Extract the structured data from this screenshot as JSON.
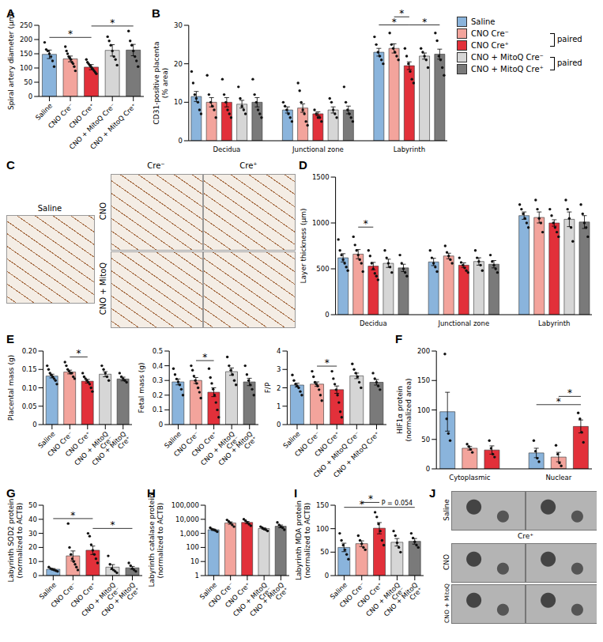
{
  "chart_data": [
    {
      "panel": "A",
      "type": "bar",
      "y_label": [
        "Spiral artery diameter (µm)"
      ],
      "categories": [
        "Saline",
        "CNO Cre⁻",
        "CNO Cre⁺",
        "CNO + MitoQ Cre⁻",
        "CNO + MitoQ Cre⁺"
      ],
      "values": [
        148,
        132,
        103,
        162,
        163
      ],
      "errors": [
        15,
        10,
        9,
        20,
        20
      ],
      "points": [
        [
          190,
          165,
          160,
          150,
          140,
          125,
          105
        ],
        [
          175,
          160,
          150,
          140,
          135,
          130,
          120,
          115,
          105,
          90
        ],
        [
          130,
          120,
          115,
          110,
          105,
          100,
          95,
          90,
          85,
          80
        ],
        [
          210,
          195,
          180,
          160,
          140,
          130,
          110
        ],
        [
          230,
          195,
          180,
          160,
          140,
          125,
          105
        ]
      ],
      "colors": [
        "#8ab4dc",
        "#f3a49c",
        "#e2303a",
        "#d6d6d6",
        "#7a7a7a"
      ],
      "ylim": [
        0,
        250
      ],
      "yticks": [
        0,
        50,
        100,
        150,
        200,
        250
      ],
      "annotations": [
        {
          "from": 0,
          "to": 2,
          "text": "*"
        },
        {
          "from": 2,
          "to": 4,
          "text": "*"
        }
      ]
    },
    {
      "panel": "B",
      "type": "bar",
      "y_label": [
        "CD31-positive placenta",
        "(% area)"
      ],
      "categories": [
        null,
        null,
        "Decidua",
        null,
        null,
        null,
        null,
        null,
        "Junctional zone",
        null,
        null,
        null,
        null,
        null,
        "Labyrinth",
        null,
        null
      ],
      "values": [
        11.5,
        10,
        10,
        9.5,
        10,
        null,
        8,
        8.5,
        7,
        8,
        8,
        null,
        23,
        24,
        19.5,
        22,
        22.5
      ],
      "errors": [
        1.3,
        1.2,
        1.2,
        1,
        1.2,
        null,
        0.8,
        1.1,
        0.5,
        0.8,
        1,
        null,
        1,
        1.2,
        1,
        0.8,
        1.3
      ],
      "points": [
        [
          18,
          15,
          12,
          11,
          10,
          8,
          7
        ],
        [
          17,
          12,
          10,
          9,
          8,
          6
        ],
        [
          16,
          12,
          10,
          8,
          7,
          6
        ],
        [
          14,
          11,
          9,
          8,
          7
        ],
        [
          16,
          12,
          10,
          8,
          7,
          6
        ],
        null,
        [
          10,
          9,
          8,
          7,
          6,
          5
        ],
        [
          15,
          13,
          10,
          8,
          7,
          5,
          4
        ],
        [
          8,
          7,
          6,
          6,
          5
        ],
        [
          11,
          10,
          8,
          7,
          6
        ],
        [
          14,
          10,
          8,
          7,
          6,
          5
        ],
        null,
        [
          27,
          25,
          23,
          22,
          21,
          20
        ],
        [
          28,
          25,
          24,
          23,
          22,
          21
        ],
        [
          24,
          22,
          20,
          18,
          16,
          15
        ],
        [
          24,
          23,
          22,
          21,
          19
        ],
        [
          28,
          26,
          22,
          21,
          19,
          17
        ]
      ],
      "colors": [
        "#8ab4dc",
        "#f3a49c",
        "#e2303a",
        "#d6d6d6",
        "#7a7a7a",
        null,
        "#8ab4dc",
        "#f3a49c",
        "#e2303a",
        "#d6d6d6",
        "#7a7a7a",
        null,
        "#8ab4dc",
        "#f3a49c",
        "#e2303a",
        "#d6d6d6",
        "#7a7a7a"
      ],
      "ylim": [
        0,
        30
      ],
      "yticks": [
        0,
        10,
        20,
        30
      ],
      "annotations": [
        {
          "from": 12,
          "to": 14,
          "text": "*"
        },
        {
          "from": 13,
          "to": 14,
          "text": "*"
        },
        {
          "from": 14,
          "to": 16,
          "text": "*"
        }
      ]
    },
    {
      "panel": "D",
      "type": "bar",
      "y_label": [
        "Layer thickness (µm)"
      ],
      "categories": [
        null,
        null,
        "Decidua",
        null,
        null,
        null,
        null,
        null,
        "Junctional zone",
        null,
        null,
        null,
        null,
        null,
        "Labyrinth",
        null,
        null
      ],
      "values": [
        620,
        660,
        530,
        560,
        510,
        null,
        575,
        640,
        540,
        580,
        550,
        null,
        1080,
        1060,
        1000,
        1040,
        1010
      ],
      "errors": [
        45,
        50,
        40,
        45,
        40,
        null,
        40,
        30,
        25,
        40,
        40,
        null,
        40,
        60,
        35,
        80,
        70
      ],
      "points": [
        [
          820,
          700,
          650,
          600,
          560,
          520,
          480
        ],
        [
          850,
          760,
          700,
          650,
          600,
          560,
          470
        ],
        [
          700,
          640,
          560,
          500,
          450,
          420,
          380
        ],
        [
          700,
          620,
          560,
          520,
          460
        ],
        [
          650,
          560,
          500,
          460,
          420
        ],
        null,
        [
          700,
          620,
          560,
          520,
          470
        ],
        [
          750,
          680,
          640,
          600,
          560
        ],
        [
          620,
          570,
          540,
          510,
          480,
          460
        ],
        [
          700,
          620,
          580,
          540,
          480
        ],
        [
          650,
          580,
          540,
          500,
          460
        ],
        null,
        [
          1200,
          1150,
          1100,
          1050,
          1000,
          950
        ],
        [
          1250,
          1150,
          1050,
          1000,
          900
        ],
        [
          1150,
          1080,
          1000,
          950,
          900,
          850
        ],
        [
          1250,
          1150,
          1050,
          950,
          800
        ],
        [
          1200,
          1100,
          1000,
          950,
          850
        ]
      ],
      "colors": [
        "#8ab4dc",
        "#f3a49c",
        "#e2303a",
        "#d6d6d6",
        "#7a7a7a",
        null,
        "#8ab4dc",
        "#f3a49c",
        "#e2303a",
        "#d6d6d6",
        "#7a7a7a",
        null,
        "#8ab4dc",
        "#f3a49c",
        "#e2303a",
        "#d6d6d6",
        "#7a7a7a"
      ],
      "ylim": [
        0,
        1500
      ],
      "yticks": [
        0,
        500,
        1000,
        1500
      ],
      "annotations": [
        {
          "from": 1,
          "to": 2,
          "text": "*"
        }
      ]
    },
    {
      "panel": "E",
      "type": "bar",
      "y_label": [
        "Placental mass (g)"
      ],
      "categories": [
        "Saline",
        "CNO Cre⁻",
        "CNO Cre⁺",
        "CNO + MitoQ Cre⁻",
        "CNO + MitoQ Cre⁺"
      ],
      "values": [
        0.132,
        0.143,
        0.118,
        0.137,
        0.124
      ],
      "errors": [
        0.005,
        0.005,
        0.005,
        0.007,
        0.005
      ],
      "points": [
        [
          0.16,
          0.15,
          0.14,
          0.135,
          0.13,
          0.125,
          0.12,
          0.11
        ],
        [
          0.17,
          0.16,
          0.15,
          0.145,
          0.14,
          0.14,
          0.13,
          0.125
        ],
        [
          0.14,
          0.13,
          0.125,
          0.12,
          0.115,
          0.11,
          0.1,
          0.09
        ],
        [
          0.16,
          0.15,
          0.14,
          0.13,
          0.12
        ],
        [
          0.14,
          0.13,
          0.125,
          0.12,
          0.115
        ]
      ],
      "colors": [
        "#8ab4dc",
        "#f3a49c",
        "#e2303a",
        "#d6d6d6",
        "#7a7a7a"
      ],
      "ylim": [
        0,
        0.2
      ],
      "yticks": [
        0,
        0.05,
        {
          "value": 0.1,
          "label": "0.10"
        },
        0.15,
        {
          "value": 0.2,
          "label": "0.20"
        }
      ],
      "annotations": [
        {
          "from": 1,
          "to": 2,
          "text": "*"
        }
      ]
    },
    {
      "type": "bar",
      "y_label": [
        "Fetal mass (g)"
      ],
      "categories": [
        "Saline",
        "CNO Cre⁻",
        "CNO Cre⁺",
        "CNO + MitoQ Cre⁻",
        "CNO + MitoQ Cre⁺"
      ],
      "values": [
        0.29,
        0.3,
        0.22,
        0.36,
        0.29
      ],
      "errors": [
        0.02,
        0.02,
        0.03,
        0.025,
        0.025
      ],
      "points": [
        [
          0.38,
          0.34,
          0.31,
          0.29,
          0.27,
          0.24,
          0.2
        ],
        [
          0.4,
          0.37,
          0.33,
          0.3,
          0.28,
          0.25,
          0.22,
          0.18
        ],
        [
          0.38,
          0.32,
          0.28,
          0.24,
          0.2,
          0.15,
          0.1,
          0.05
        ],
        [
          0.46,
          0.4,
          0.37,
          0.34,
          0.3,
          0.27
        ],
        [
          0.4,
          0.34,
          0.3,
          0.27,
          0.24,
          0.2
        ]
      ],
      "colors": [
        "#8ab4dc",
        "#f3a49c",
        "#e2303a",
        "#d6d6d6",
        "#7a7a7a"
      ],
      "ylim": [
        0,
        0.5
      ],
      "yticks": [
        0,
        0.1,
        0.2,
        0.3,
        0.4,
        0.5
      ],
      "annotations": [
        {
          "from": 1,
          "to": 2,
          "text": "*"
        }
      ]
    },
    {
      "type": "bar",
      "y_label": [
        "F/P"
      ],
      "categories": [
        "Saline",
        "CNO Cre⁻",
        "CNO Cre⁺",
        "CNO + MitoQ Cre⁻",
        "CNO + MitoQ Cre⁺"
      ],
      "values": [
        2.15,
        2.2,
        1.9,
        2.65,
        2.3
      ],
      "errors": [
        0.1,
        0.12,
        0.2,
        0.15,
        0.15
      ],
      "points": [
        [
          2.7,
          2.4,
          2.2,
          2.1,
          2,
          1.8,
          1.6
        ],
        [
          2.9,
          2.6,
          2.3,
          2.2,
          2.1,
          1.9,
          1.6,
          1.3
        ],
        [
          2.9,
          2.5,
          2.2,
          1.9,
          1.6,
          1.2,
          0.7,
          0.4
        ],
        [
          3.3,
          3,
          2.8,
          2.6,
          2.3,
          2
        ],
        [
          2.8,
          2.5,
          2.3,
          2.1,
          1.9
        ]
      ],
      "colors": [
        "#8ab4dc",
        "#f3a49c",
        "#e2303a",
        "#d6d6d6",
        "#7a7a7a"
      ],
      "ylim": [
        0,
        4
      ],
      "yticks": [
        0,
        1,
        2,
        3,
        4
      ],
      "annotations": [
        {
          "from": 1,
          "to": 2,
          "text": "*"
        }
      ]
    },
    {
      "panel": "F",
      "type": "bar",
      "y_label": [
        "HIF1α protein",
        "(normalized area)"
      ],
      "categories": [
        null,
        "Cytoplasmic",
        null,
        null,
        null,
        "Nuclear",
        null
      ],
      "values": [
        97,
        35,
        32,
        null,
        27,
        20,
        72
      ],
      "errors": [
        33,
        3,
        7,
        null,
        8,
        8,
        11
      ],
      "points": [
        [
          195,
          85,
          60,
          48
        ],
        [
          42,
          38,
          33,
          28
        ],
        [
          48,
          35,
          25,
          20
        ],
        null,
        [
          48,
          30,
          18,
          12
        ],
        [
          40,
          25,
          10,
          5
        ],
        [
          95,
          85,
          62,
          45
        ]
      ],
      "colors": [
        "#8ab4dc",
        "#f3a49c",
        "#e2303a",
        null,
        "#8ab4dc",
        "#f3a49c",
        "#e2303a"
      ],
      "ylim": [
        0,
        200
      ],
      "yticks": [
        0,
        50,
        100,
        150,
        200
      ],
      "annotations": [
        {
          "from": 4,
          "to": 6,
          "text": "*"
        },
        {
          "from": 5,
          "to": 6,
          "text": "*"
        }
      ]
    },
    {
      "panel": "G",
      "type": "bar",
      "y_label": [
        "Labyrinth SOD2 protein",
        "(normalized to ACTB)"
      ],
      "categories": [
        "Saline",
        "CNO Cre⁻",
        "CNO Cre⁺",
        "CNO + MitoQ Cre⁻",
        "CNO + MitoQ Cre⁺"
      ],
      "values": [
        4.5,
        14,
        18,
        6,
        5.5
      ],
      "errors": [
        0.5,
        3.5,
        3,
        1.8,
        1
      ],
      "points": [
        [
          6,
          5,
          4.5,
          4,
          3.5,
          3
        ],
        [
          37,
          20,
          15,
          12,
          10,
          8,
          6,
          4
        ],
        [
          30,
          28,
          22,
          18,
          15,
          12,
          9
        ],
        [
          14,
          8,
          5,
          4,
          3,
          2
        ],
        [
          9,
          7,
          5,
          4,
          3
        ]
      ],
      "colors": [
        "#8ab4dc",
        "#f3a49c",
        "#e2303a",
        "#d6d6d6",
        "#7a7a7a"
      ],
      "ylim": [
        0,
        50
      ],
      "yticks": [
        0,
        10,
        20,
        30,
        40,
        50
      ],
      "annotations": [
        {
          "from": 0,
          "to": 2,
          "text": "*"
        },
        {
          "from": 2,
          "to": 4,
          "text": "*"
        }
      ]
    },
    {
      "panel": "H",
      "type": "bar",
      "y_label": [
        "Labyrinth catalase protein",
        "(normalized to ACTB)"
      ],
      "categories": [
        "Saline",
        "CNO Cre⁻",
        "CNO Cre⁺",
        "CNO + MitoQ Cre⁻",
        "CNO + MitoQ Cre⁺"
      ],
      "values": [
        1800,
        5500,
        6000,
        2200,
        3200
      ],
      "errors": [
        200,
        1000,
        1000,
        250,
        700
      ],
      "points": [
        [
          2500,
          2000,
          1800,
          1600,
          1300
        ],
        [
          9000,
          7000,
          5500,
          4000,
          3000
        ],
        [
          10000,
          8000,
          6000,
          4500,
          3500
        ],
        [
          3000,
          2500,
          2000,
          1800,
          1500
        ],
        [
          6000,
          4000,
          3000,
          2500,
          1800
        ]
      ],
      "colors": [
        "#8ab4dc",
        "#f3a49c",
        "#e2303a",
        "#d6d6d6",
        "#7a7a7a"
      ],
      "log": "y",
      "ylim": [
        1,
        100000
      ],
      "yticks": [
        1,
        10,
        100,
        {
          "value": 1000,
          "label": "1,000"
        },
        {
          "value": 10000,
          "label": "10,000"
        },
        {
          "value": 100000,
          "label": "100,000"
        }
      ]
    },
    {
      "panel": "I",
      "type": "bar",
      "y_label": [
        "Labyrinth MDA protein",
        "(normalized to ACTB)"
      ],
      "categories": [
        "Saline",
        "CNO Cre⁻",
        "CNO Cre⁺",
        "CNO + MitoQ Cre⁻",
        "CNO + MitoQ Cre⁺"
      ],
      "values": [
        60,
        68,
        101,
        71,
        73
      ],
      "errors": [
        9,
        6,
        12,
        8,
        6
      ],
      "points": [
        [
          90,
          75,
          65,
          55,
          45,
          35
        ],
        [
          85,
          75,
          68,
          60,
          55
        ],
        [
          135,
          125,
          110,
          95,
          75,
          65
        ],
        [
          95,
          85,
          70,
          60,
          50
        ],
        [
          90,
          80,
          72,
          65,
          60
        ]
      ],
      "colors": [
        "#8ab4dc",
        "#f3a49c",
        "#e2303a",
        "#d6d6d6",
        "#7a7a7a"
      ],
      "ylim": [
        0,
        150
      ],
      "yticks": [
        0,
        50,
        100,
        150
      ],
      "annotations": [
        {
          "from": 0,
          "to": 2,
          "text": "*"
        },
        {
          "from": 1,
          "to": 2,
          "text": "*"
        },
        {
          "from": 2,
          "to": 4,
          "text": "P = 0.054"
        }
      ]
    }
  ],
  "legend_panel": {
    "items": [
      {
        "name": "Saline",
        "color": "#8ab4dc"
      },
      {
        "name": "CNO Cre⁻",
        "color": "#f3a49c"
      },
      {
        "name": "CNO Cre⁺",
        "color": "#e2303a"
      },
      {
        "name": "CNO + MitoQ Cre⁻",
        "color": "#d6d6d6"
      },
      {
        "name": "CNO + MitoQ Cre⁺",
        "color": "#7a7a7a"
      }
    ],
    "pairs": [
      {
        "from": 1,
        "to": 2,
        "label": "paired"
      },
      {
        "from": 3,
        "to": 4,
        "label": "paired"
      }
    ]
  },
  "images": [
    {
      "panel": "C",
      "side_label": "Saline",
      "column_labels": [
        "Cre⁻",
        "Cre⁺"
      ],
      "row_labels": [
        "CNO",
        "CNO + MitoQ"
      ]
    },
    {
      "panel": "J",
      "row_labels": [
        "Saline",
        "CNO",
        "CNO + MitoQ"
      ],
      "column_label": "Cre⁺"
    }
  ]
}
